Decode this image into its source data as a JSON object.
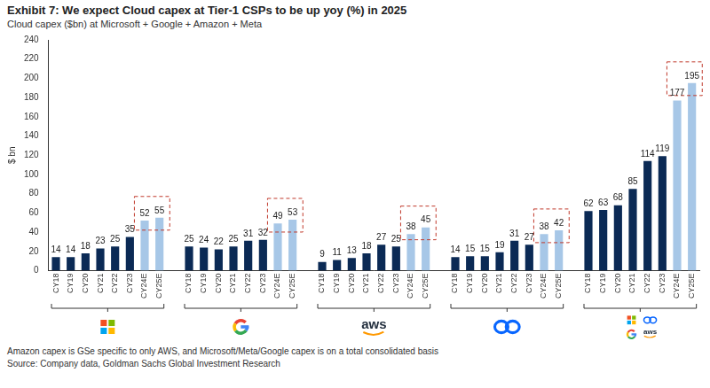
{
  "chart_data": {
    "type": "bar",
    "title": "Exhibit 7: We expect Cloud capex at Tier-1 CSPs to be up yoy (%) in 2025",
    "subtitle": "Cloud capex ($bn) at Microsoft + Google + Amazon + Meta",
    "y_label": "$ bn",
    "categories": [
      "CY18",
      "CY19",
      "CY20",
      "CY21",
      "CY22",
      "CY23",
      "CY24E",
      "CY25E",
      null,
      "CY18",
      "CY19",
      "CY20",
      "CY21",
      "CY22",
      "CY23",
      "CY24E",
      "CY25E",
      null,
      "CY18",
      "CY19",
      "CY20",
      "CY21",
      "CY22",
      "CY23",
      "CY24E",
      "CY25E",
      null,
      "CY18",
      "CY19",
      "CY20",
      "CY21",
      "CY22",
      "CY23",
      "CY24E",
      "CY25E",
      null,
      "CY18",
      "CY19",
      "CY20",
      "CY21",
      "CY22",
      "CY23",
      "CY24E",
      "CY25E"
    ],
    "values": [
      14,
      14,
      18,
      23,
      25,
      35,
      52,
      55,
      null,
      25,
      24,
      22,
      25,
      31,
      32,
      49,
      53,
      null,
      9,
      11,
      13,
      18,
      27,
      25,
      38,
      45,
      null,
      14,
      15,
      15,
      19,
      31,
      27,
      38,
      42,
      null,
      62,
      63,
      68,
      85,
      114,
      119,
      177,
      195
    ],
    "colors": [
      "#0b2a55",
      "#0b2a55",
      "#0b2a55",
      "#0b2a55",
      "#0b2a55",
      "#0b2a55",
      "#a7c7e7",
      "#a7c7e7",
      null,
      "#0b2a55",
      "#0b2a55",
      "#0b2a55",
      "#0b2a55",
      "#0b2a55",
      "#0b2a55",
      "#a7c7e7",
      "#a7c7e7",
      null,
      "#0b2a55",
      "#0b2a55",
      "#0b2a55",
      "#0b2a55",
      "#0b2a55",
      "#0b2a55",
      "#a7c7e7",
      "#a7c7e7",
      null,
      "#0b2a55",
      "#0b2a55",
      "#0b2a55",
      "#0b2a55",
      "#0b2a55",
      "#0b2a55",
      "#a7c7e7",
      "#a7c7e7",
      null,
      "#0b2a55",
      "#0b2a55",
      "#0b2a55",
      "#0b2a55",
      "#0b2a55",
      "#0b2a55",
      "#a7c7e7",
      "#a7c7e7"
    ],
    "ylim": [
      0,
      240
    ],
    "yticks": [
      0,
      20,
      40,
      60,
      80,
      100,
      120,
      140,
      160,
      180,
      200,
      220,
      240
    ],
    "grid": false,
    "data_labels": true,
    "logo_text": "aws",
    "notes": [
      "Amazon capex is GSe specific to only AWS, and Microsoft/Meta/Google capex is on a total consolidated basis",
      "Source: Company data, Goldman Sachs Global Investment Research"
    ]
  }
}
